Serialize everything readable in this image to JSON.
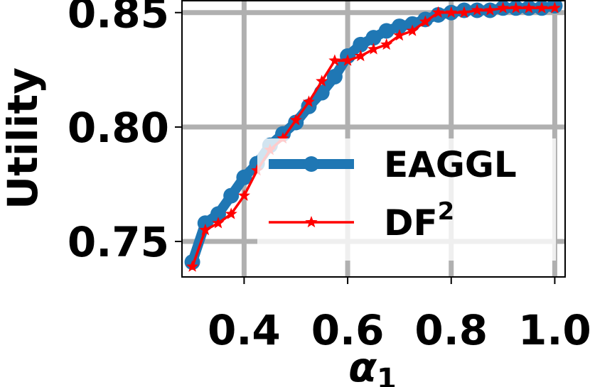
{
  "chart_data": {
    "type": "line",
    "xlabel": "α",
    "xlabel_sub": "1",
    "ylabel": "Utility",
    "xlim": [
      0.28,
      1.02
    ],
    "ylim": [
      0.7345,
      0.8555
    ],
    "xticks": [
      0.4,
      0.6,
      0.8,
      1.0
    ],
    "xtick_labels": [
      "0.4",
      "0.6",
      "0.8",
      "1.0"
    ],
    "yticks": [
      0.75,
      0.8,
      0.85
    ],
    "ytick_labels": [
      "0.75",
      "0.80",
      "0.85"
    ],
    "grid": true,
    "legend_position": "right",
    "series": [
      {
        "name": "EAGGL",
        "color": "#1f77b4",
        "marker": "circle",
        "x": [
          0.3,
          0.325,
          0.35,
          0.375,
          0.4,
          0.425,
          0.45,
          0.475,
          0.5,
          0.525,
          0.55,
          0.575,
          0.6,
          0.625,
          0.65,
          0.675,
          0.7,
          0.725,
          0.75,
          0.775,
          0.8,
          0.825,
          0.85,
          0.875,
          0.9,
          0.925,
          0.95,
          0.975,
          1.0
        ],
        "values": [
          0.741,
          0.758,
          0.762,
          0.77,
          0.778,
          0.784,
          0.792,
          0.797,
          0.802,
          0.809,
          0.815,
          0.822,
          0.831,
          0.836,
          0.839,
          0.842,
          0.844,
          0.845,
          0.847,
          0.849,
          0.85,
          0.851,
          0.851,
          0.851,
          0.852,
          0.852,
          0.852,
          0.852,
          0.853
        ]
      },
      {
        "name": "DF",
        "name_sup": "2",
        "color": "#ff0000",
        "marker": "star",
        "x": [
          0.3,
          0.325,
          0.35,
          0.375,
          0.4,
          0.425,
          0.45,
          0.475,
          0.5,
          0.525,
          0.55,
          0.575,
          0.6,
          0.625,
          0.65,
          0.675,
          0.7,
          0.725,
          0.75,
          0.775,
          0.8,
          0.825,
          0.85,
          0.875,
          0.9,
          0.925,
          0.95,
          0.975,
          1.0
        ],
        "values": [
          0.739,
          0.755,
          0.758,
          0.762,
          0.77,
          0.781,
          0.79,
          0.795,
          0.803,
          0.811,
          0.82,
          0.829,
          0.829,
          0.831,
          0.834,
          0.836,
          0.84,
          0.842,
          0.846,
          0.85,
          0.85,
          0.85,
          0.851,
          0.851,
          0.852,
          0.852,
          0.852,
          0.852,
          0.852
        ]
      }
    ]
  }
}
